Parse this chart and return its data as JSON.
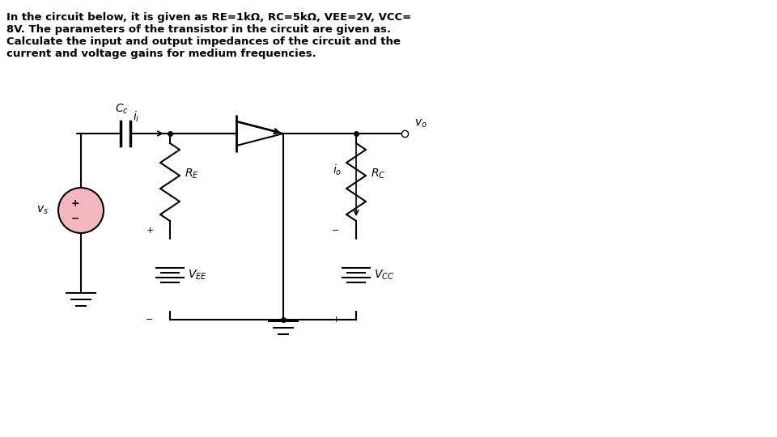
{
  "title_text": "In the circuit below, it is given as RE=1kΩ, RC=5kΩ, VEE=2V, VCC=\n8V. The parameters of the transistor in the circuit are given as.\nCalculate the input and output impedances of the circuit and the\ncurrent and voltage gains for medium frequencies.",
  "bg_color": "#ffffff",
  "line_color": "#000000",
  "source_color": "#f5b8c0",
  "fig_width": 9.6,
  "fig_height": 5.4,
  "dpi": 100
}
